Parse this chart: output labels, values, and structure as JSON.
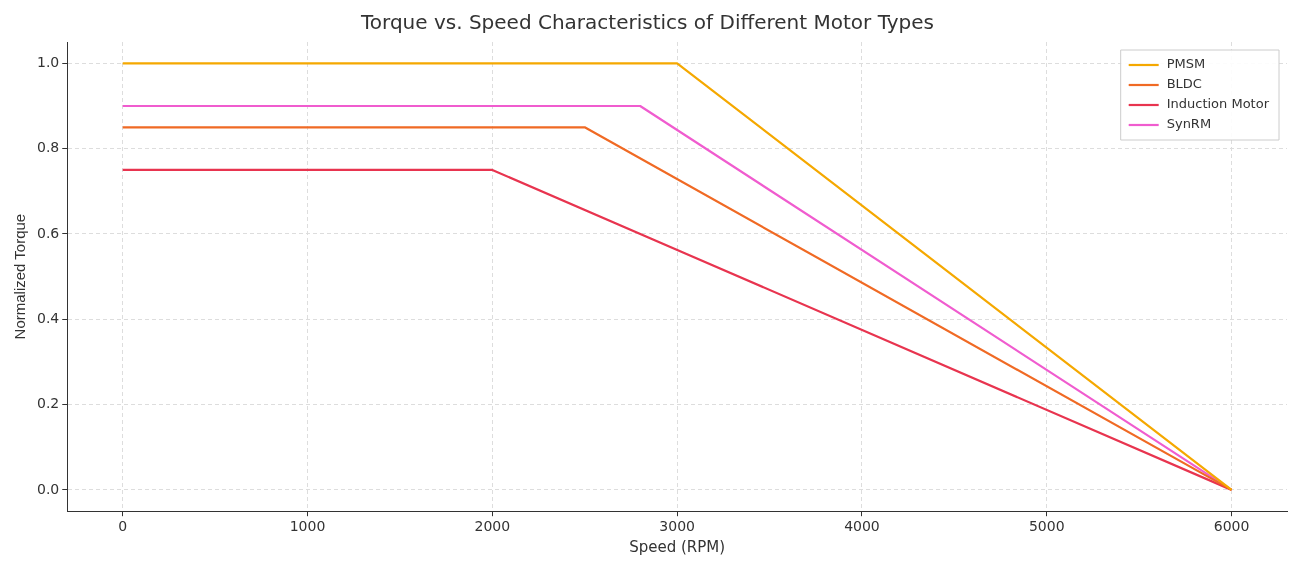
{
  "chart_data": {
    "type": "line",
    "title": "Torque vs. Speed Characteristics of Different Motor Types",
    "xlabel": "Speed (RPM)",
    "ylabel": "Normalized Torque",
    "xlim": [
      -300,
      6300
    ],
    "ylim": [
      -0.05,
      1.05
    ],
    "xticks": [
      0,
      1000,
      2000,
      3000,
      4000,
      5000,
      6000
    ],
    "yticks": [
      {
        "value": 0,
        "label": "0.0"
      },
      {
        "value": 0.2,
        "label": "0.2"
      },
      {
        "value": 0.4,
        "label": "0.4"
      },
      {
        "value": 0.6,
        "label": "0.6"
      },
      {
        "value": 0.8,
        "label": "0.8"
      },
      {
        "value": 1,
        "label": "1.0"
      }
    ],
    "grid": true,
    "legend": "top right",
    "marker": "none",
    "line_style": "solid",
    "series": [
      {
        "name": "PMSM",
        "color": "#f5a800",
        "x": [
          0,
          3000,
          6000
        ],
        "values": [
          1.0,
          1.0,
          0
        ]
      },
      {
        "name": "BLDC",
        "color": "#f06a24",
        "x": [
          0,
          2500,
          6000
        ],
        "values": [
          0.85,
          0.85,
          0
        ]
      },
      {
        "name": "Induction Motor",
        "color": "#e8344f",
        "x": [
          0,
          2000,
          6000
        ],
        "values": [
          0.75,
          0.75,
          0
        ]
      },
      {
        "name": "SynRM",
        "color": "#f05ccf",
        "x": [
          0,
          2800,
          6000
        ],
        "values": [
          0.9,
          0.9,
          0
        ]
      }
    ]
  }
}
